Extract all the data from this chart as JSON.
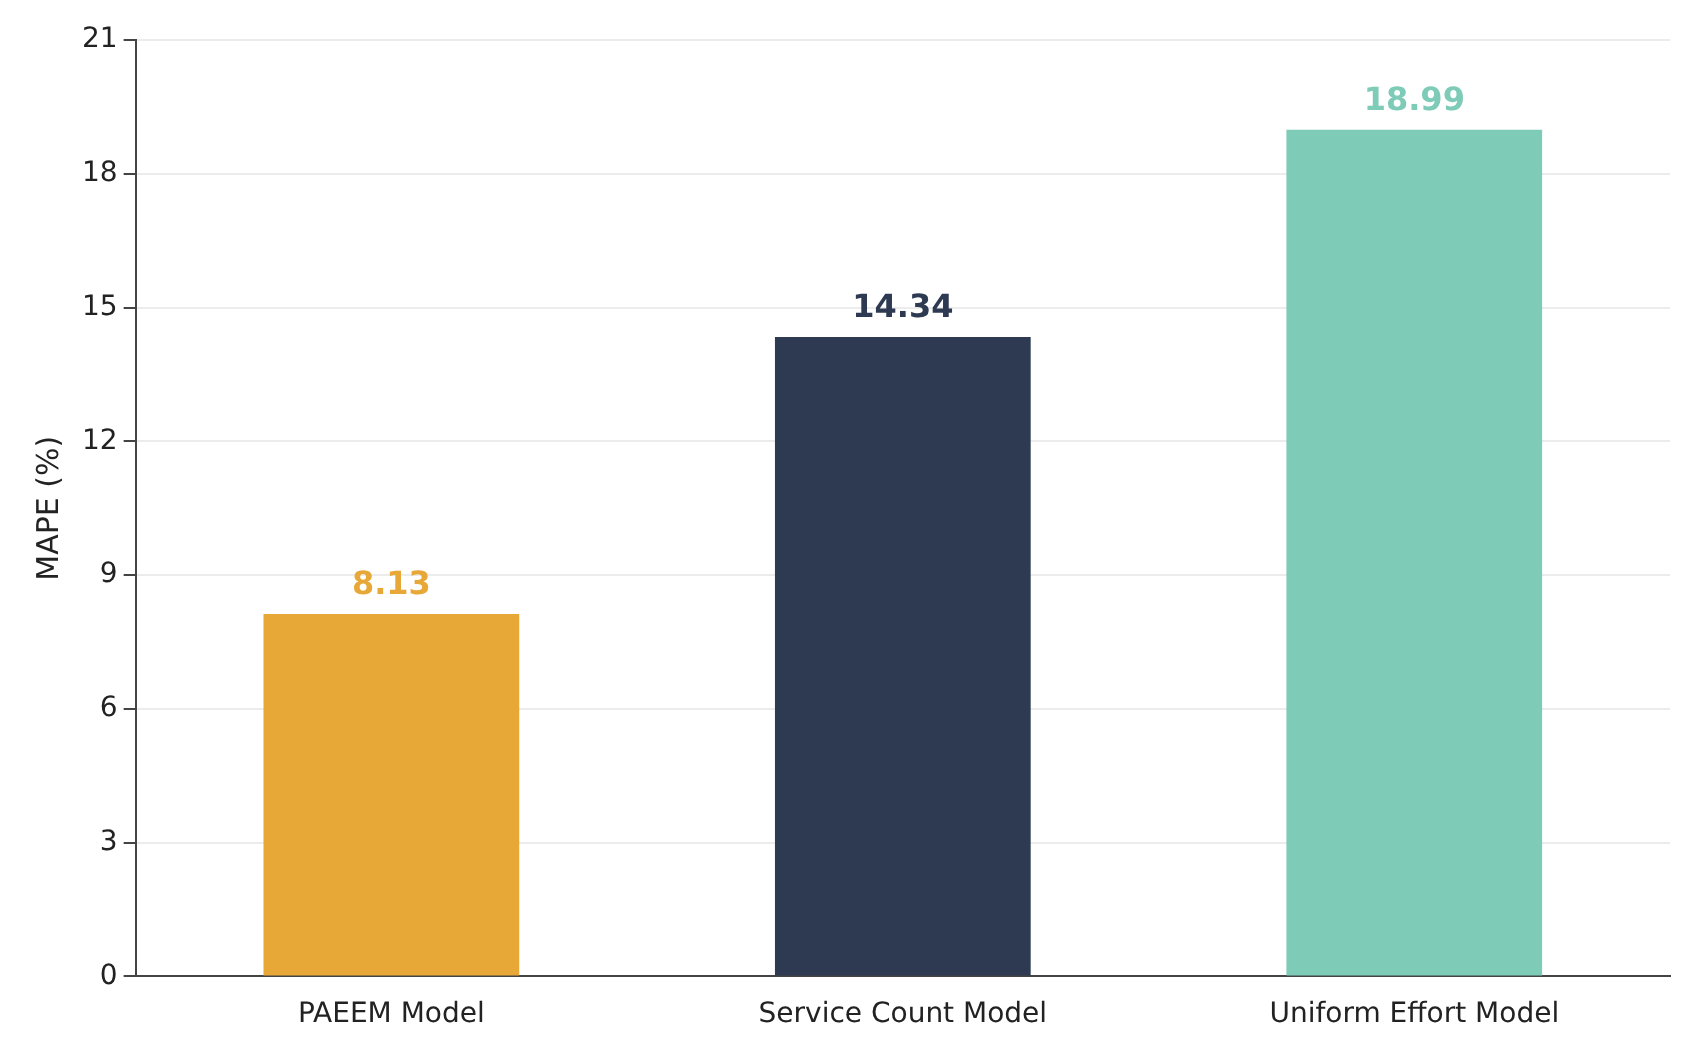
{
  "chart_data": {
    "type": "bar",
    "ylabel": "MAPE (%)",
    "categories": [
      "PAEEM Model",
      "Service Count Model",
      "Uniform Effort Model"
    ],
    "values": [
      8.13,
      14.34,
      18.99
    ],
    "colors": [
      "#e8a838",
      "#2d3a52",
      "#7ecbb8"
    ],
    "ylim": [
      0,
      21
    ],
    "yticks": [
      0,
      3,
      6,
      9,
      12,
      15,
      18,
      21
    ],
    "grid": "y",
    "data_labels": true,
    "legend": false
  }
}
